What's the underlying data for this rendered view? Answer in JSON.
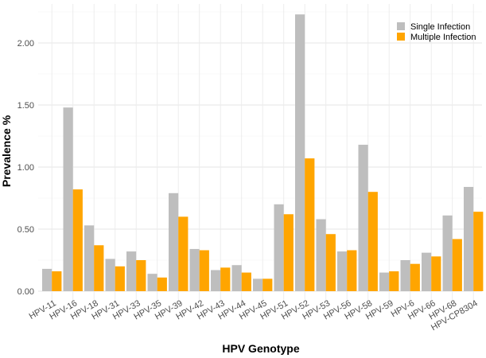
{
  "chart_data": {
    "type": "bar",
    "title": "",
    "xlabel": "HPV Genotype",
    "ylabel": "Prevalence %",
    "ylim": [
      0,
      2.3
    ],
    "yticks": [
      "0.00",
      "0.50",
      "1.00",
      "1.50",
      "2.00"
    ],
    "grid": true,
    "legend_position": "top-right",
    "categories": [
      "HPV-11",
      "HPV-16",
      "HPV-18",
      "HPV-31",
      "HPV-33",
      "HPV-35",
      "HPV-39",
      "HPV-42",
      "HPV-43",
      "HPV-44",
      "HPV-45",
      "HPV-51",
      "HPV-52",
      "HPV-53",
      "HPV-56",
      "HPV-58",
      "HPV-59",
      "HPV-6",
      "HPV-66",
      "HPV-68",
      "HPV-CP8304"
    ],
    "series": [
      {
        "name": "Single Infection",
        "color": "#bebebe",
        "values": [
          0.18,
          1.48,
          0.53,
          0.26,
          0.32,
          0.14,
          0.79,
          0.34,
          0.17,
          0.21,
          0.1,
          0.7,
          2.23,
          0.58,
          0.32,
          1.18,
          0.15,
          0.25,
          0.31,
          0.61,
          0.84
        ]
      },
      {
        "name": "Multiple Infection",
        "color": "#ffa500",
        "values": [
          0.16,
          0.82,
          0.37,
          0.2,
          0.25,
          0.11,
          0.6,
          0.33,
          0.19,
          0.15,
          0.1,
          0.62,
          1.07,
          0.46,
          0.33,
          0.8,
          0.16,
          0.22,
          0.28,
          0.42,
          0.64
        ]
      }
    ]
  }
}
